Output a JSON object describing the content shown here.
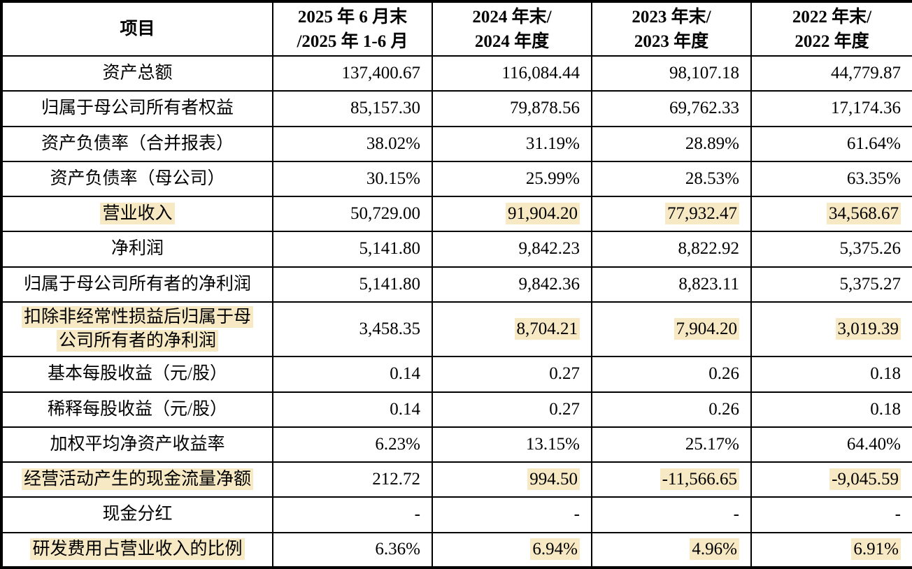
{
  "page": {
    "colors": {
      "background": "#ffffff",
      "text": "#000000",
      "border": "#000000",
      "highlight": "#F7E9C3"
    }
  },
  "table": {
    "columns": [
      {
        "line1": "项目",
        "line2": ""
      },
      {
        "line1": "2025 年 6 月末",
        "line2": "/2025 年 1-6 月"
      },
      {
        "line1": "2024 年末/",
        "line2": "2024 年度"
      },
      {
        "line1": "2023 年末/",
        "line2": "2023 年度"
      },
      {
        "line1": "2022 年末/",
        "line2": "2022 年度"
      }
    ],
    "rows": [
      {
        "label": "资产总额",
        "hl": false,
        "tall": false,
        "values": [
          {
            "t": "137,400.67",
            "hl": false
          },
          {
            "t": "116,084.44",
            "hl": false
          },
          {
            "t": "98,107.18",
            "hl": false
          },
          {
            "t": "44,779.87",
            "hl": false
          }
        ]
      },
      {
        "label": "归属于母公司所有者权益",
        "hl": false,
        "tall": false,
        "values": [
          {
            "t": "85,157.30",
            "hl": false
          },
          {
            "t": "79,878.56",
            "hl": false
          },
          {
            "t": "69,762.33",
            "hl": false
          },
          {
            "t": "17,174.36",
            "hl": false
          }
        ]
      },
      {
        "label": "资产负债率（合并报表）",
        "hl": false,
        "tall": false,
        "values": [
          {
            "t": "38.02%",
            "hl": false
          },
          {
            "t": "31.19%",
            "hl": false
          },
          {
            "t": "28.89%",
            "hl": false
          },
          {
            "t": "61.64%",
            "hl": false
          }
        ]
      },
      {
        "label": "资产负债率（母公司）",
        "hl": false,
        "tall": false,
        "values": [
          {
            "t": "30.15%",
            "hl": false
          },
          {
            "t": "25.99%",
            "hl": false
          },
          {
            "t": "28.53%",
            "hl": false
          },
          {
            "t": "63.35%",
            "hl": false
          }
        ]
      },
      {
        "label": "营业收入",
        "hl": true,
        "tall": false,
        "values": [
          {
            "t": "50,729.00",
            "hl": false
          },
          {
            "t": "91,904.20",
            "hl": true
          },
          {
            "t": "77,932.47",
            "hl": true
          },
          {
            "t": "34,568.67",
            "hl": true
          }
        ]
      },
      {
        "label": "净利润",
        "hl": false,
        "tall": false,
        "values": [
          {
            "t": "5,141.80",
            "hl": false
          },
          {
            "t": "9,842.23",
            "hl": false
          },
          {
            "t": "8,822.92",
            "hl": false
          },
          {
            "t": "5,375.26",
            "hl": false
          }
        ]
      },
      {
        "label": "归属于母公司所有者的净利润",
        "hl": false,
        "tall": false,
        "values": [
          {
            "t": "5,141.80",
            "hl": false
          },
          {
            "t": "9,842.36",
            "hl": false
          },
          {
            "t": "8,823.11",
            "hl": false
          },
          {
            "t": "5,375.27",
            "hl": false
          }
        ]
      },
      {
        "label": "扣除非经常性损益后归属于母公司所有者的净利润",
        "hl": true,
        "tall": true,
        "values": [
          {
            "t": "3,458.35",
            "hl": false
          },
          {
            "t": "8,704.21",
            "hl": true
          },
          {
            "t": "7,904.20",
            "hl": true
          },
          {
            "t": "3,019.39",
            "hl": true
          }
        ]
      },
      {
        "label": "基本每股收益（元/股）",
        "hl": false,
        "tall": false,
        "values": [
          {
            "t": "0.14",
            "hl": false
          },
          {
            "t": "0.27",
            "hl": false
          },
          {
            "t": "0.26",
            "hl": false
          },
          {
            "t": "0.18",
            "hl": false
          }
        ]
      },
      {
        "label": "稀释每股收益（元/股）",
        "hl": false,
        "tall": false,
        "values": [
          {
            "t": "0.14",
            "hl": false
          },
          {
            "t": "0.27",
            "hl": false
          },
          {
            "t": "0.26",
            "hl": false
          },
          {
            "t": "0.18",
            "hl": false
          }
        ]
      },
      {
        "label": "加权平均净资产收益率",
        "hl": false,
        "tall": false,
        "values": [
          {
            "t": "6.23%",
            "hl": false
          },
          {
            "t": "13.15%",
            "hl": false
          },
          {
            "t": "25.17%",
            "hl": false
          },
          {
            "t": "64.40%",
            "hl": false
          }
        ]
      },
      {
        "label": "经营活动产生的现金流量净额",
        "hl": true,
        "tall": false,
        "values": [
          {
            "t": "212.72",
            "hl": false
          },
          {
            "t": "994.50",
            "hl": true
          },
          {
            "t": "-11,566.65",
            "hl": true
          },
          {
            "t": "-9,045.59",
            "hl": true
          }
        ]
      },
      {
        "label": "现金分红",
        "hl": false,
        "tall": false,
        "values": [
          {
            "t": "-",
            "hl": false
          },
          {
            "t": "-",
            "hl": false
          },
          {
            "t": "-",
            "hl": false
          },
          {
            "t": "-",
            "hl": false
          }
        ]
      },
      {
        "label": "研发费用占营业收入的比例",
        "hl": true,
        "tall": false,
        "values": [
          {
            "t": "6.36%",
            "hl": false
          },
          {
            "t": "6.94%",
            "hl": true
          },
          {
            "t": "4.96%",
            "hl": true
          },
          {
            "t": "6.91%",
            "hl": true
          }
        ]
      }
    ]
  }
}
